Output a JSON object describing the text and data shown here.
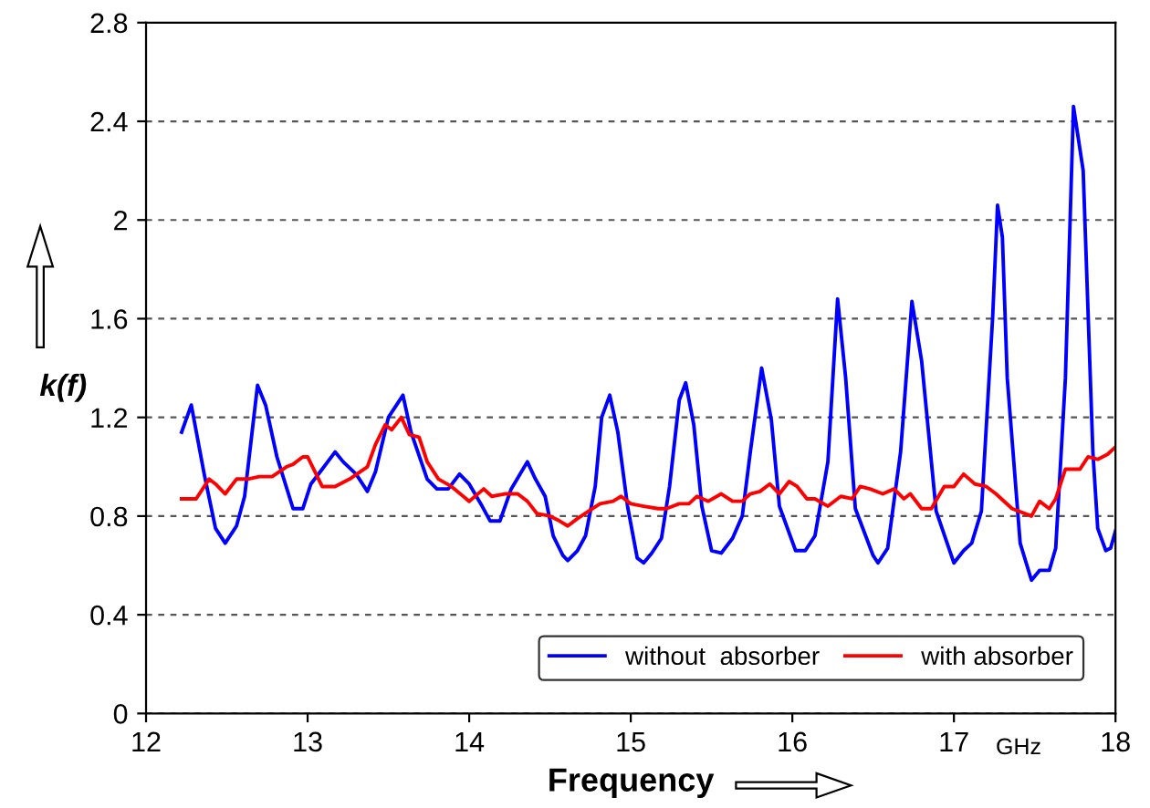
{
  "chart_data": {
    "type": "line",
    "xlabel": "Frequency",
    "ylabel": "k(f)",
    "annotations": [
      "GHz"
    ],
    "xlim": [
      12,
      18
    ],
    "xticks": [
      12,
      13,
      14,
      15,
      16,
      17,
      18
    ],
    "ylim": [
      0,
      2.8
    ],
    "yticks": [
      0,
      0.4,
      0.8,
      1.2,
      1.6,
      2,
      2.4,
      2.8
    ],
    "grid": "y",
    "legend": "bottom right",
    "marker": "none",
    "line_style": "solid",
    "series": [
      {
        "name": "without  absorber",
        "color": "#0000ff",
        "x": [
          12.22,
          12.28,
          12.36,
          12.43,
          12.49,
          12.56,
          12.61,
          12.69,
          12.74,
          12.81,
          12.91,
          12.97,
          13.02,
          13.09,
          13.17,
          13.22,
          13.3,
          13.37,
          13.42,
          13.5,
          13.59,
          13.64,
          13.74,
          13.8,
          13.87,
          13.94,
          14.0,
          14.08,
          14.13,
          14.19,
          14.26,
          14.36,
          14.41,
          14.47,
          14.52,
          14.58,
          14.61,
          14.67,
          14.72,
          14.78,
          14.82,
          14.87,
          14.92,
          14.98,
          15.04,
          15.08,
          15.13,
          15.19,
          15.24,
          15.3,
          15.34,
          15.39,
          15.44,
          15.5,
          15.56,
          15.63,
          15.69,
          15.74,
          15.81,
          15.87,
          15.92,
          16.02,
          16.08,
          16.14,
          16.22,
          16.28,
          16.33,
          16.39,
          16.5,
          16.53,
          16.59,
          16.67,
          16.74,
          16.8,
          16.89,
          17.0,
          17.06,
          17.11,
          17.17,
          17.24,
          17.27,
          17.3,
          17.33,
          17.41,
          17.48,
          17.53,
          17.59,
          17.63,
          17.69,
          17.74,
          17.8,
          17.86,
          17.89,
          17.94,
          17.97,
          18.0
        ],
        "values": [
          1.14,
          1.25,
          0.97,
          0.75,
          0.69,
          0.76,
          0.88,
          1.33,
          1.25,
          1.04,
          0.83,
          0.83,
          0.93,
          0.99,
          1.06,
          1.02,
          0.97,
          0.9,
          0.98,
          1.2,
          1.29,
          1.14,
          0.95,
          0.91,
          0.91,
          0.97,
          0.93,
          0.84,
          0.78,
          0.78,
          0.91,
          1.02,
          0.95,
          0.88,
          0.72,
          0.64,
          0.62,
          0.66,
          0.72,
          0.92,
          1.2,
          1.29,
          1.14,
          0.84,
          0.63,
          0.61,
          0.65,
          0.71,
          0.92,
          1.27,
          1.34,
          1.17,
          0.84,
          0.66,
          0.65,
          0.71,
          0.8,
          1.06,
          1.4,
          1.19,
          0.84,
          0.66,
          0.66,
          0.72,
          1.02,
          1.68,
          1.36,
          0.83,
          0.64,
          0.61,
          0.67,
          1.06,
          1.67,
          1.43,
          0.82,
          0.61,
          0.66,
          0.69,
          0.82,
          1.61,
          2.06,
          1.93,
          1.36,
          0.69,
          0.54,
          0.58,
          0.58,
          0.67,
          1.36,
          2.46,
          2.2,
          1.06,
          0.75,
          0.66,
          0.67,
          0.74
        ]
      },
      {
        "name": "with absorber",
        "color": "#ff0000",
        "x": [
          12.22,
          12.31,
          12.39,
          12.43,
          12.49,
          12.56,
          12.63,
          12.7,
          12.78,
          12.87,
          12.91,
          12.97,
          13.0,
          13.09,
          13.17,
          13.26,
          13.37,
          13.42,
          13.48,
          13.52,
          13.58,
          13.63,
          13.69,
          13.74,
          13.81,
          13.89,
          14.0,
          14.09,
          14.14,
          14.22,
          14.3,
          14.36,
          14.42,
          14.5,
          14.56,
          14.61,
          14.67,
          14.74,
          14.81,
          14.89,
          14.94,
          15.0,
          15.08,
          15.17,
          15.22,
          15.3,
          15.36,
          15.41,
          15.48,
          15.56,
          15.63,
          15.69,
          15.74,
          15.8,
          15.86,
          15.92,
          15.98,
          16.03,
          16.09,
          16.14,
          16.22,
          16.3,
          16.37,
          16.42,
          16.48,
          16.56,
          16.63,
          16.69,
          16.73,
          16.8,
          16.86,
          16.94,
          17.0,
          17.06,
          17.13,
          17.2,
          17.26,
          17.36,
          17.48,
          17.53,
          17.59,
          17.63,
          17.69,
          17.78,
          17.83,
          17.89,
          17.95,
          18.0
        ],
        "values": [
          0.87,
          0.87,
          0.95,
          0.93,
          0.89,
          0.95,
          0.95,
          0.96,
          0.96,
          1.0,
          1.01,
          1.04,
          1.04,
          0.92,
          0.92,
          0.95,
          1.0,
          1.09,
          1.17,
          1.15,
          1.2,
          1.13,
          1.12,
          1.02,
          0.95,
          0.92,
          0.86,
          0.91,
          0.88,
          0.89,
          0.89,
          0.86,
          0.81,
          0.8,
          0.78,
          0.76,
          0.79,
          0.82,
          0.85,
          0.86,
          0.88,
          0.85,
          0.84,
          0.83,
          0.83,
          0.85,
          0.85,
          0.88,
          0.86,
          0.89,
          0.86,
          0.86,
          0.89,
          0.9,
          0.93,
          0.89,
          0.94,
          0.92,
          0.87,
          0.87,
          0.84,
          0.88,
          0.87,
          0.92,
          0.91,
          0.89,
          0.91,
          0.87,
          0.89,
          0.83,
          0.83,
          0.92,
          0.92,
          0.97,
          0.93,
          0.92,
          0.89,
          0.83,
          0.8,
          0.86,
          0.83,
          0.87,
          0.99,
          0.99,
          1.04,
          1.03,
          1.05,
          1.08
        ]
      }
    ]
  }
}
